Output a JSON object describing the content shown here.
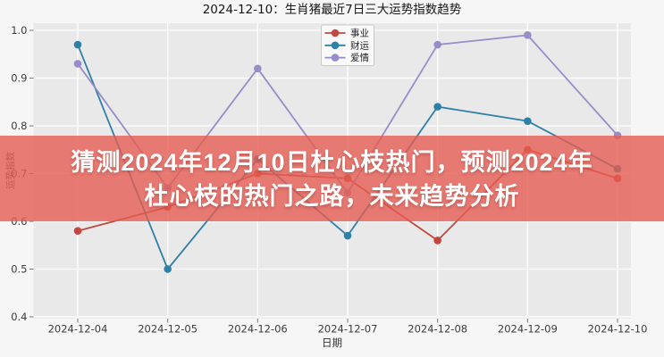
{
  "title": "2024-12-10：生肖猪最近7日三大运势指数趋势",
  "banner": {
    "line1": "猜测2024年12月10日杜心枝热门，预测2024年",
    "line2": "杜心枝的热门之路，未来趋势分析",
    "bg_color": "rgba(229, 93, 83, 0.80)",
    "text_color": "#ffffff"
  },
  "chart_data": {
    "type": "line",
    "title": "2024-12-10：生肖猪最近7日三大运势指数趋势",
    "xlabel": "日期",
    "ylabel": "运势指数",
    "categories": [
      "2024-12-04",
      "2024-12-05",
      "2024-12-06",
      "2024-12-07",
      "2024-12-08",
      "2024-12-09",
      "2024-12-10"
    ],
    "series": [
      {
        "name": "事业",
        "color": "#c4463e",
        "values": [
          0.58,
          0.63,
          0.7,
          0.69,
          0.56,
          0.75,
          0.69
        ]
      },
      {
        "name": "财运",
        "color": "#2f80a6",
        "values": [
          0.97,
          0.5,
          0.73,
          0.57,
          0.84,
          0.81,
          0.71
        ]
      },
      {
        "name": "爱情",
        "color": "#988dc8",
        "values": [
          0.93,
          0.67,
          0.92,
          0.66,
          0.97,
          0.99,
          0.78
        ]
      }
    ],
    "ylim": [
      0.4,
      1.0
    ],
    "yticks": [
      1.0,
      0.9,
      0.8,
      0.7,
      0.6,
      0.5,
      0.4
    ],
    "grid": true,
    "legend_position": "top-center",
    "plot_bg": "#e9e9e9",
    "figure_bg": "#f6f6f6",
    "gridline_color": "#ffffff",
    "tick_color": "#3c3c3c"
  }
}
